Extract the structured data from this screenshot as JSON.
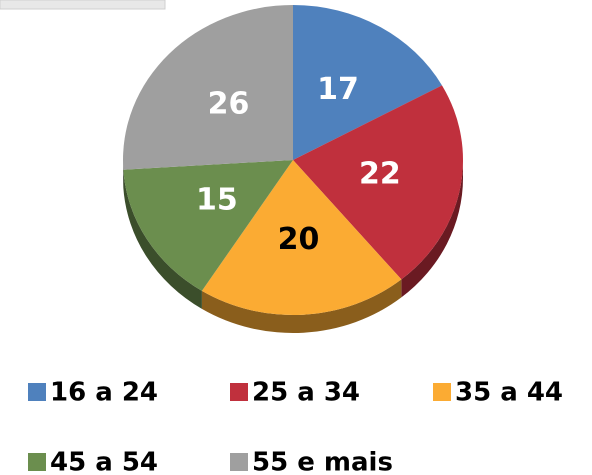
{
  "chart_data": {
    "type": "pie",
    "categories": [
      "16 a 24",
      "25 a 34",
      "35 a 44",
      "45 a 54",
      "55 e mais"
    ],
    "values": [
      17,
      22,
      20,
      15,
      26
    ],
    "colors": [
      "#4f81bd",
      "#c0303d",
      "#fbab33",
      "#6b8e4e",
      "#9f9f9f"
    ],
    "value_label_colors": [
      "#ffffff",
      "#ffffff",
      "#000000",
      "#ffffff",
      "#ffffff"
    ],
    "legend": "bottom"
  }
}
